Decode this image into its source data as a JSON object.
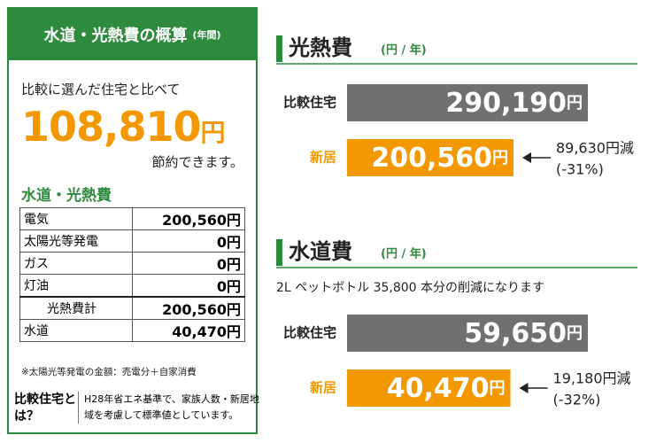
{
  "summary": {
    "title": "水道・光熱費の概算",
    "title_note": "(年間)",
    "lead": "比較に選んだ住宅と比べて",
    "amount": "108,810",
    "unit": "円",
    "tail": "節約できます。",
    "section": "水道・光熱費",
    "table": {
      "rows": [
        [
          "電気",
          "200,560円"
        ],
        [
          "太陽光等発電",
          "0円"
        ],
        [
          "ガス",
          "0円"
        ],
        [
          "灯油",
          "0円"
        ],
        [
          "光熱費計",
          "200,560円"
        ],
        [
          "水道",
          "40,470円"
        ]
      ]
    },
    "note": "※太陽光等発電の金額：売電分＋自家消費",
    "footer": {
      "term": "比較住宅とは？",
      "text": "H28年省エネ基準で、家族人数・新居地域を考慮して標準値としています。"
    }
  },
  "chart_data": [
    {
      "type": "bar",
      "orientation": "horizontal",
      "title": "光熱費",
      "subtitle": "(円 / 年)",
      "categories": [
        "比較住宅",
        "新居"
      ],
      "values": [
        290190,
        200560
      ],
      "value_labels": [
        "290,190",
        "200,560"
      ],
      "unit": "円",
      "colors": [
        "#707070",
        "#f39800"
      ],
      "annotation": [
        "89,630円減",
        "(-31%)"
      ]
    },
    {
      "type": "bar",
      "orientation": "horizontal",
      "title": "水道費",
      "subtitle": "(円 / 年)",
      "note": "2L ペットボトル 35,800 本分の削減になります",
      "categories": [
        "比較住宅",
        "新居"
      ],
      "values": [
        59650,
        40470
      ],
      "value_labels": [
        "59,650",
        "40,470"
      ],
      "unit": "円",
      "colors": [
        "#707070",
        "#f39800"
      ],
      "annotation": [
        "19,180円減",
        "(-32%)"
      ]
    }
  ]
}
